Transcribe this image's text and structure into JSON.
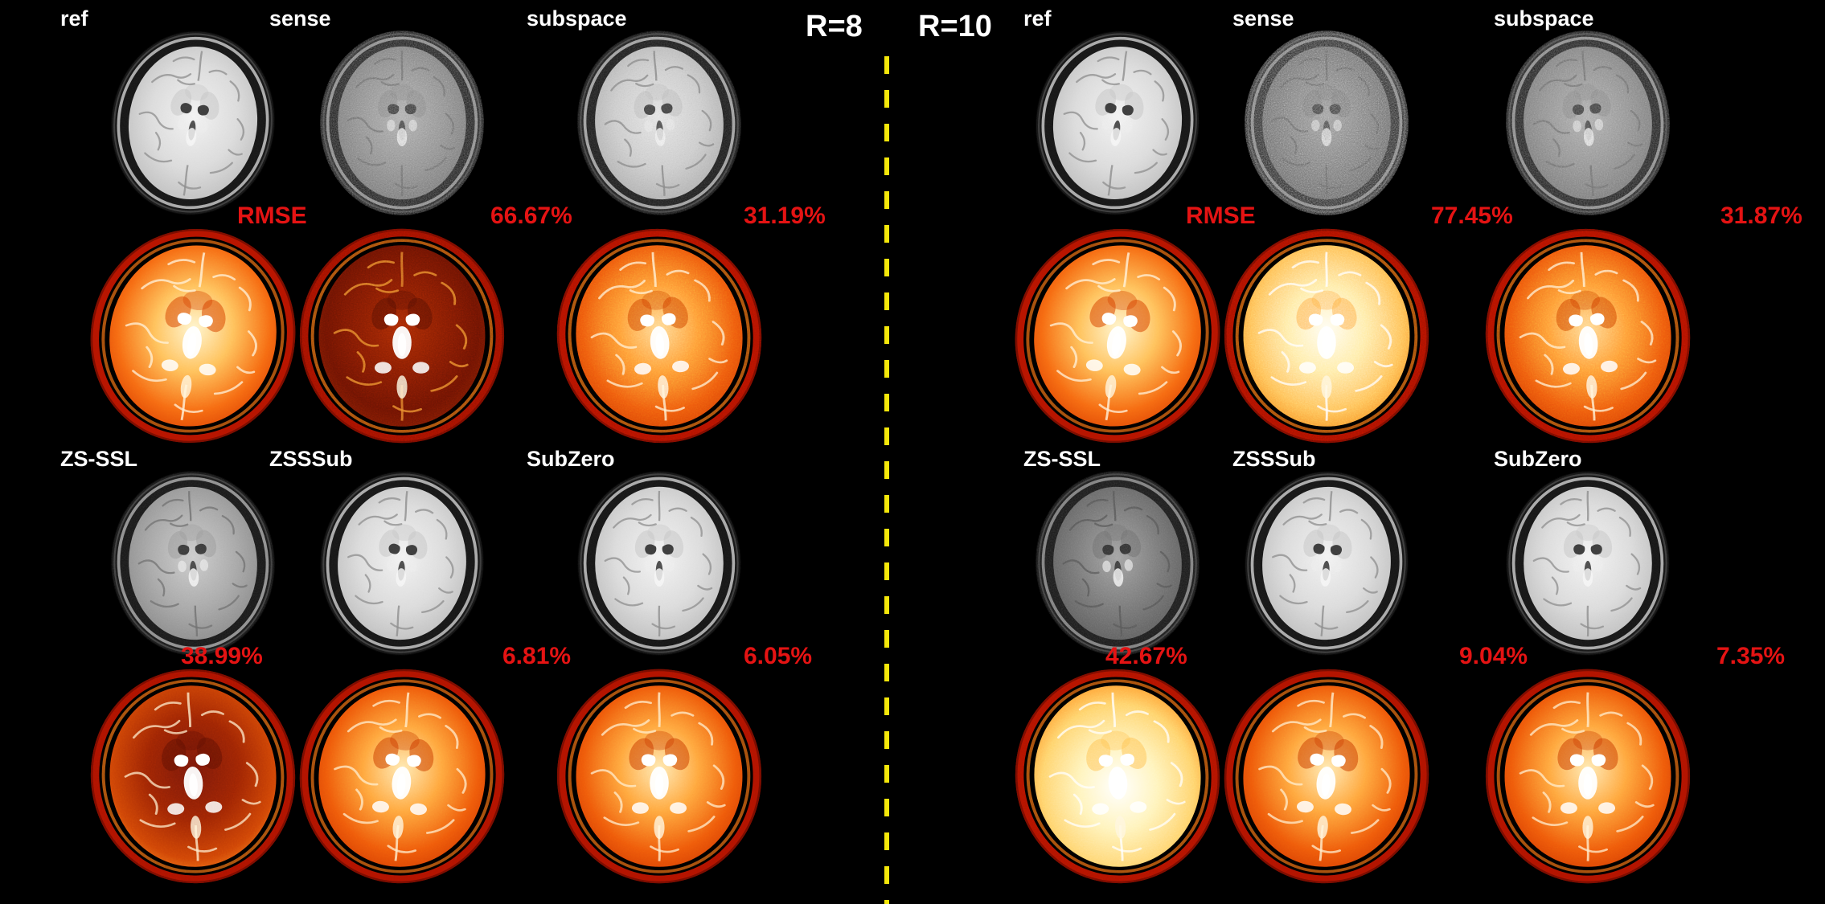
{
  "figure": {
    "colors": {
      "background": "#000000",
      "label_text": "#ffffff",
      "metric_text": "#e41313",
      "divider": "#f5e70a"
    },
    "sections": [
      {
        "acceleration_label": "R=8",
        "rows": [
          {
            "panels": [
              {
                "label": "ref",
                "metric": "RMSE",
                "gray_variant": "gray-clean",
                "hot_variant": "hot-ref"
              },
              {
                "label": "sense",
                "metric": "66.67%",
                "gray_variant": "gray-noisy",
                "hot_variant": "hot-dark"
              },
              {
                "label": "subspace",
                "metric": "31.19%",
                "gray_variant": "gray-grainy",
                "hot_variant": "hot-noisy"
              }
            ]
          },
          {
            "panels": [
              {
                "label": "ZS-SSL",
                "metric": "38.99%",
                "gray_variant": "gray-dim",
                "hot_variant": "hot-deep"
              },
              {
                "label": "ZSSSub",
                "metric": "6.81%",
                "gray_variant": "gray-clean",
                "hot_variant": "hot-ref2"
              },
              {
                "label": "SubZero",
                "metric": "6.05%",
                "gray_variant": "gray-clean",
                "hot_variant": "hot-ref2"
              }
            ]
          }
        ]
      },
      {
        "acceleration_label": "R=10",
        "rows": [
          {
            "panels": [
              {
                "label": "ref",
                "metric": "RMSE",
                "gray_variant": "gray-clean",
                "hot_variant": "hot-ref"
              },
              {
                "label": "sense",
                "metric": "77.45%",
                "gray_variant": "gray-very-noisy",
                "hot_variant": "hot-bright-noisy"
              },
              {
                "label": "subspace",
                "metric": "31.87%",
                "gray_variant": "gray-noisy",
                "hot_variant": "hot-noisy"
              }
            ]
          },
          {
            "panels": [
              {
                "label": "ZS-SSL",
                "metric": "42.67%",
                "gray_variant": "gray-dark",
                "hot_variant": "hot-overbright"
              },
              {
                "label": "ZSSSub",
                "metric": "9.04%",
                "gray_variant": "gray-clean",
                "hot_variant": "hot-ref2"
              },
              {
                "label": "SubZero",
                "metric": "7.35%",
                "gray_variant": "gray-clean",
                "hot_variant": "hot-ref2"
              }
            ]
          }
        ]
      }
    ]
  }
}
